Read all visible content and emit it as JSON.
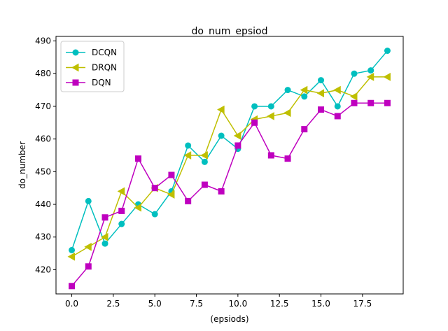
{
  "chart_data": {
    "type": "line",
    "title": "do_num_epsiod",
    "xlabel": "(epsiods)",
    "ylabel": "do_number",
    "xlim": [
      -0.95,
      19.95
    ],
    "ylim": [
      412.6,
      491.4
    ],
    "xticks": [
      0.0,
      2.5,
      5.0,
      7.5,
      10.0,
      12.5,
      15.0,
      17.5
    ],
    "xtick_labels": [
      "0.0",
      "2.5",
      "5.0",
      "7.5",
      "10.0",
      "12.5",
      "15.0",
      "17.5"
    ],
    "yticks": [
      420,
      430,
      440,
      450,
      460,
      470,
      480,
      490
    ],
    "ytick_labels": [
      "420",
      "430",
      "440",
      "450",
      "460",
      "470",
      "480",
      "490"
    ],
    "grid": false,
    "legend_position": "top-left",
    "x": [
      0,
      1,
      2,
      3,
      4,
      5,
      6,
      7,
      8,
      9,
      10,
      11,
      12,
      13,
      14,
      15,
      16,
      17,
      18,
      19
    ],
    "series": [
      {
        "name": "DCQN",
        "color": "#00bfbf",
        "marker": "circle",
        "values": [
          426,
          441,
          428,
          434,
          440,
          437,
          444,
          458,
          453,
          461,
          457,
          470,
          470,
          475,
          473,
          478,
          470,
          480,
          481,
          487
        ]
      },
      {
        "name": "DRQN",
        "color": "#bfbf00",
        "marker": "triangle-left",
        "values": [
          424,
          427,
          430,
          444,
          439,
          445,
          443,
          455,
          455,
          469,
          461,
          466,
          467,
          468,
          475,
          474,
          475,
          473,
          479,
          479
        ]
      },
      {
        "name": "DQN",
        "color": "#bf00bf",
        "marker": "square",
        "values": [
          415,
          421,
          436,
          438,
          454,
          445,
          449,
          441,
          446,
          444,
          458,
          465,
          455,
          454,
          463,
          469,
          467,
          471,
          471,
          471
        ]
      }
    ]
  }
}
